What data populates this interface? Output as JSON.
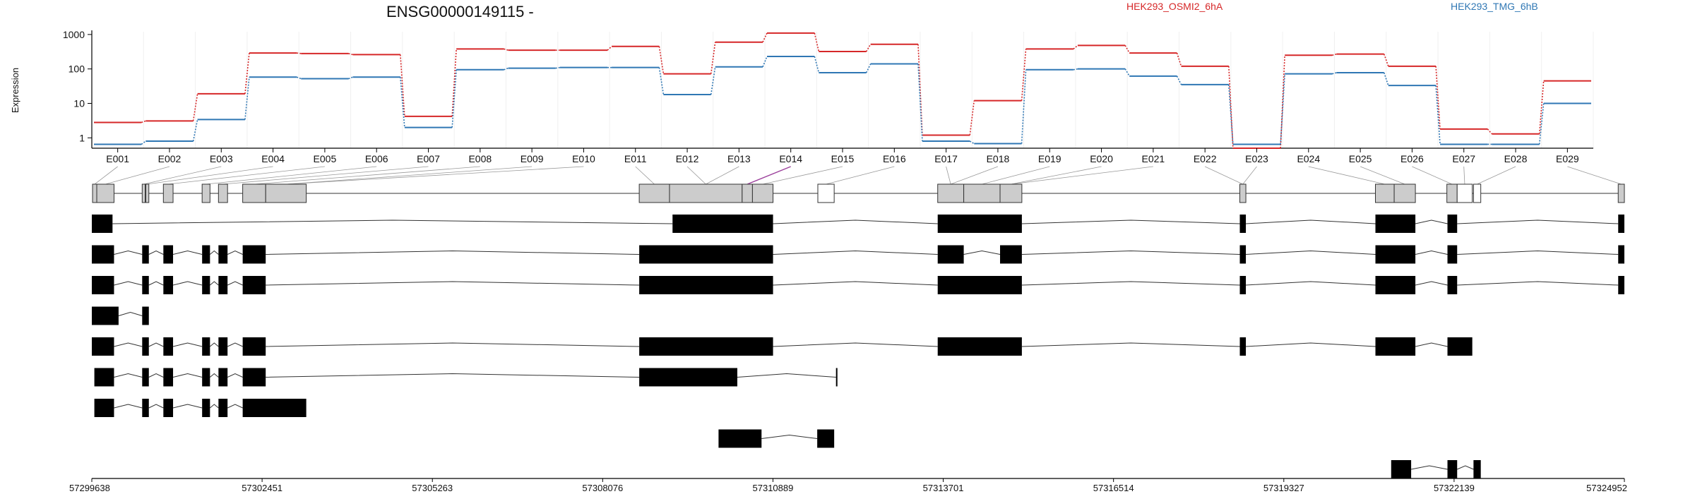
{
  "chart_data": {
    "type": "line",
    "title": "ENSG00000149115 -",
    "ylabel": "Expression",
    "yscale": "log",
    "ylim": [
      0.5,
      1200
    ],
    "yticks": [
      1,
      10,
      100,
      1000
    ],
    "ytick_labels": [
      "1",
      "10",
      "100",
      "1000"
    ],
    "categories": [
      "E001",
      "E002",
      "E003",
      "E004",
      "E005",
      "E006",
      "E007",
      "E008",
      "E009",
      "E010",
      "E011",
      "E012",
      "E013",
      "E014",
      "E015",
      "E016",
      "E017",
      "E018",
      "E019",
      "E020",
      "E021",
      "E022",
      "E023",
      "E024",
      "E025",
      "E026",
      "E027",
      "E028",
      "E029"
    ],
    "legend": "top",
    "grid": true,
    "series": [
      {
        "name": "HEK293_OSMI2_6hA",
        "color": "#d62728",
        "values": [
          2.8,
          3.1,
          19,
          290,
          280,
          260,
          4.2,
          380,
          350,
          350,
          450,
          72,
          600,
          1100,
          320,
          520,
          1.2,
          12,
          380,
          480,
          290,
          120,
          0.5,
          250,
          270,
          120,
          1.8,
          1.3,
          45
        ]
      },
      {
        "name": "HEK293_TMG_6hB",
        "color": "#2f77b4",
        "values": [
          0.65,
          0.8,
          3.4,
          58,
          52,
          58,
          2.0,
          95,
          105,
          110,
          110,
          18,
          115,
          230,
          78,
          140,
          0.8,
          0.68,
          95,
          100,
          62,
          35,
          0.65,
          72,
          78,
          33,
          0.65,
          0.65,
          10
        ]
      }
    ],
    "genome": {
      "coord_ticks": [
        "57299638",
        "57302451",
        "57305263",
        "57308076",
        "57310889",
        "57313701",
        "57316514",
        "57319327",
        "57322139",
        "57324952"
      ],
      "coord_range": [
        57299638,
        57324952
      ],
      "exon_bins": [
        {
          "s": 57299650,
          "e": 57299720
        },
        {
          "s": 57299720,
          "e": 57300005
        },
        {
          "s": 57300470,
          "e": 57300520
        },
        {
          "s": 57300530,
          "e": 57300580
        },
        {
          "s": 57300820,
          "e": 57300980
        },
        {
          "s": 57301460,
          "e": 57301590
        },
        {
          "s": 57301730,
          "e": 57301880
        },
        {
          "s": 57302130,
          "e": 57302510
        },
        {
          "s": 57302510,
          "e": 57303180
        },
        {
          "s": 57308680,
          "e": 57309180
        },
        {
          "s": 57309180,
          "e": 57310380
        },
        {
          "s": 57310380,
          "e": 57310550
        },
        {
          "s": 57310550,
          "e": 57310890
        },
        {
          "s": 57311630,
          "e": 57311900
        },
        {
          "s": 57313610,
          "e": 57314040
        },
        {
          "s": 57314040,
          "e": 57314640
        },
        {
          "s": 57314640,
          "e": 57315000
        },
        {
          "s": 57318600,
          "e": 57318700
        },
        {
          "s": 57320840,
          "e": 57321150
        },
        {
          "s": 57321150,
          "e": 57321500
        },
        {
          "s": 57322020,
          "e": 57322190
        },
        {
          "s": 57322190,
          "e": 57322440
        },
        {
          "s": 57322460,
          "e": 57322580
        },
        {
          "s": 57324850,
          "e": 57324952
        }
      ],
      "white_bins": [
        13,
        21,
        22
      ],
      "bin_of_exon": [
        0,
        1,
        2,
        3,
        4,
        5,
        6,
        7,
        8,
        8,
        9,
        10,
        10,
        11,
        12,
        13,
        14,
        14,
        15,
        16,
        16,
        17,
        17,
        18,
        19,
        20,
        21,
        22,
        23
      ],
      "purple_exon": "E014",
      "transcripts": [
        [
          [
            57299638,
            57299980
          ],
          [
            57309230,
            57310890
          ],
          [
            57313610,
            57315000
          ],
          [
            57318600,
            57318700
          ],
          [
            57320840,
            57321500
          ],
          [
            57322030,
            57322190
          ],
          [
            57324850,
            57324952
          ]
        ],
        [
          [
            57299638,
            57300005
          ],
          [
            57300470,
            57300580
          ],
          [
            57300820,
            57300980
          ],
          [
            57301460,
            57301590
          ],
          [
            57301730,
            57301880
          ],
          [
            57302130,
            57302510
          ],
          [
            57308680,
            57310890
          ],
          [
            57313610,
            57314040
          ],
          [
            57314640,
            57315000
          ],
          [
            57318600,
            57318700
          ],
          [
            57320840,
            57321500
          ],
          [
            57322030,
            57322190
          ],
          [
            57324850,
            57324952
          ]
        ],
        [
          [
            57299638,
            57300005
          ],
          [
            57300470,
            57300580
          ],
          [
            57300820,
            57300980
          ],
          [
            57301460,
            57301590
          ],
          [
            57301730,
            57301880
          ],
          [
            57302130,
            57302510
          ],
          [
            57308680,
            57310890
          ],
          [
            57313610,
            57315000
          ],
          [
            57318600,
            57318700
          ],
          [
            57320840,
            57321500
          ],
          [
            57322030,
            57322190
          ],
          [
            57324850,
            57324952
          ]
        ],
        [
          [
            57299638,
            57300080
          ],
          [
            57300470,
            57300580
          ]
        ],
        [
          [
            57299638,
            57300005
          ],
          [
            57300470,
            57300580
          ],
          [
            57300820,
            57300980
          ],
          [
            57301460,
            57301590
          ],
          [
            57301730,
            57301880
          ],
          [
            57302130,
            57302510
          ],
          [
            57308680,
            57310890
          ],
          [
            57313610,
            57315000
          ],
          [
            57318600,
            57318700
          ],
          [
            57320840,
            57321500
          ],
          [
            57322030,
            57322440
          ]
        ],
        [
          [
            57299680,
            57300005
          ],
          [
            57300470,
            57300580
          ],
          [
            57300820,
            57300980
          ],
          [
            57301460,
            57301590
          ],
          [
            57301730,
            57301880
          ],
          [
            57302130,
            57302510
          ],
          [
            57308680,
            57310300
          ],
          [
            57311930,
            57311950
          ]
        ],
        [
          [
            57299680,
            57300005
          ],
          [
            57300470,
            57300580
          ],
          [
            57300820,
            57300980
          ],
          [
            57301460,
            57301590
          ],
          [
            57301730,
            57301880
          ],
          [
            57302130,
            57303180
          ]
        ],
        [
          [
            57309990,
            57310700
          ],
          [
            57311620,
            57311900
          ]
        ],
        [
          [
            57321100,
            57321430
          ],
          [
            57322030,
            57322190
          ],
          [
            57322460,
            57322580
          ]
        ]
      ]
    }
  }
}
